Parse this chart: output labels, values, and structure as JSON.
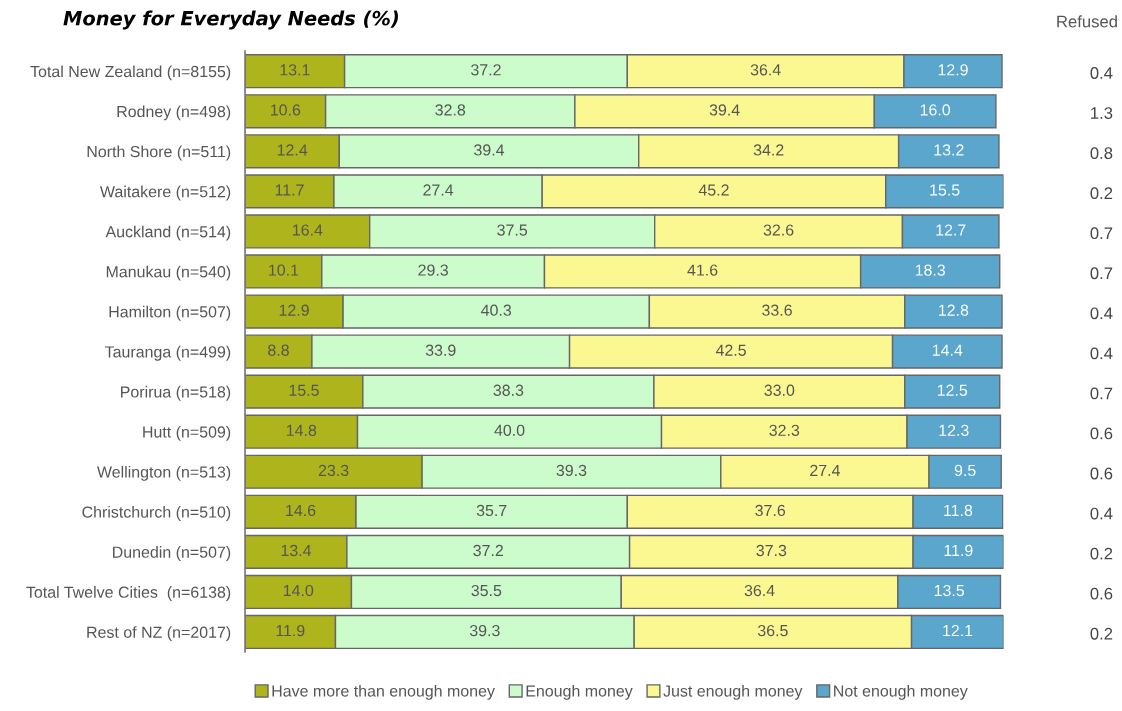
{
  "chart_data": {
    "type": "bar",
    "orientation": "horizontal",
    "stacked": true,
    "title": "Money for Everyday Needs (%)",
    "categories": [
      "Total New Zealand (n=8155)",
      "Rodney (n=498)",
      "North Shore (n=511)",
      "Waitakere (n=512)",
      "Auckland (n=514)",
      "Manukau (n=540)",
      "Hamilton (n=507)",
      "Tauranga (n=499)",
      "Porirua (n=518)",
      "Hutt (n=509)",
      "Wellington (n=513)",
      "Christchurch (n=510)",
      "Dunedin (n=507)",
      "Total Twelve Cities  (n=6138)",
      "Rest of NZ (n=2017)"
    ],
    "series": [
      {
        "name": "Have more than enough money",
        "color": "#aeb51c",
        "values": [
          13.1,
          10.6,
          12.4,
          11.7,
          16.4,
          10.1,
          12.9,
          8.8,
          15.5,
          14.8,
          23.3,
          14.6,
          13.4,
          14.0,
          11.9
        ],
        "value_labels": [
          "13.1",
          "10.6",
          "12.4",
          "11.7",
          "16.4",
          "10.1",
          "12.9",
          "8.8",
          "15.5",
          "14.8",
          "23.3",
          "14.6",
          "13.4",
          "14.0",
          "11.9"
        ]
      },
      {
        "name": "Enough money",
        "color": "#ccfbcc",
        "values": [
          37.2,
          32.8,
          39.4,
          27.4,
          37.5,
          29.3,
          40.3,
          33.9,
          38.3,
          40.0,
          39.3,
          35.7,
          37.2,
          35.5,
          39.3
        ],
        "value_labels": [
          "37.2",
          "32.8",
          "39.4",
          "27.4",
          "37.5",
          "29.3",
          "40.3",
          "33.9",
          "38.3",
          "40.0",
          "39.3",
          "35.7",
          "37.2",
          "35.5",
          "39.3"
        ]
      },
      {
        "name": "Just enough money",
        "color": "#fbf891",
        "values": [
          36.4,
          39.4,
          34.2,
          45.2,
          32.6,
          41.6,
          33.6,
          42.5,
          33.0,
          32.3,
          27.4,
          37.6,
          37.3,
          36.4,
          36.5
        ],
        "value_labels": [
          "36.4",
          "39.4",
          "34.2",
          "45.2",
          "32.6",
          "41.6",
          "33.6",
          "42.5",
          "33.0",
          "32.3",
          "27.4",
          "37.6",
          "37.3",
          "36.4",
          "36.5"
        ]
      },
      {
        "name": "Not enough money",
        "color": "#5aa6cc",
        "values": [
          12.9,
          16.0,
          13.2,
          15.5,
          12.7,
          18.3,
          12.8,
          14.4,
          12.5,
          12.3,
          9.5,
          11.8,
          11.9,
          13.5,
          12.1
        ],
        "value_labels": [
          "12.9",
          "16.0",
          "13.2",
          "15.5",
          "12.7",
          "18.3",
          "12.8",
          "14.4",
          "12.5",
          "12.3",
          "9.5",
          "11.8",
          "11.9",
          "13.5",
          "12.1"
        ]
      }
    ],
    "annotations": [
      "Refused",
      "0.4",
      "1.3",
      "0.8",
      "0.2",
      "0.7",
      "0.7",
      "0.4",
      "0.4",
      "0.7",
      "0.6",
      "0.6",
      "0.4",
      "0.2",
      "0.6",
      "0.2"
    ],
    "legend": "bottom",
    "tick_labels": "y",
    "grid": false
  }
}
